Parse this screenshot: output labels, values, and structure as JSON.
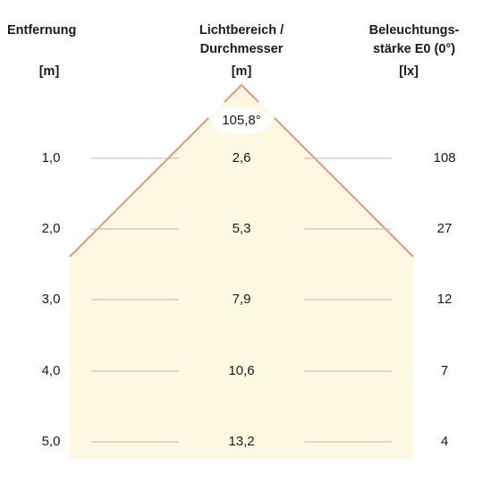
{
  "headers": {
    "distance": "Entfernung",
    "distance_unit": "[m]",
    "diameter_line1": "Lichtbereich /",
    "diameter_line2": "Durchmesser",
    "diameter_unit": "[m]",
    "illuminance_line1": "Beleuchtungs-",
    "illuminance_line2": "stärke E0 (0°)",
    "illuminance_unit": "[lx]"
  },
  "beam_angle": "105,8°",
  "rows": [
    {
      "distance": "1,0",
      "diameter": "2,6",
      "illuminance": "108"
    },
    {
      "distance": "2,0",
      "diameter": "5,3",
      "illuminance": "27"
    },
    {
      "distance": "3,0",
      "diameter": "7,9",
      "illuminance": "12"
    },
    {
      "distance": "4,0",
      "diameter": "10,6",
      "illuminance": "7"
    },
    {
      "distance": "5,0",
      "diameter": "13,2",
      "illuminance": "4"
    }
  ],
  "colors": {
    "beam_fill": "#fcf8e2",
    "beam_edge": "#e29a77",
    "row_line": "#b9b9b9"
  }
}
